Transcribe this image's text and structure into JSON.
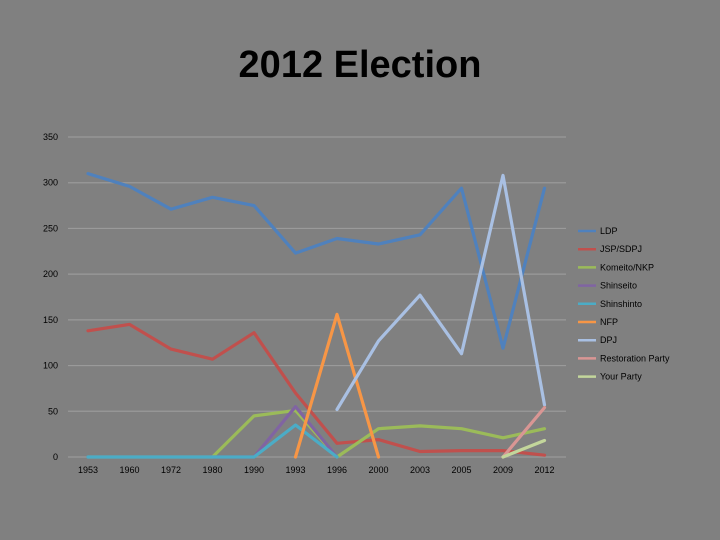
{
  "title": "2012 Election",
  "chart_data": {
    "type": "line",
    "title": "2012 Election",
    "xlabel": "",
    "ylabel": "",
    "ylim": [
      0,
      350
    ],
    "yticks": [
      0,
      50,
      100,
      150,
      200,
      250,
      300,
      350
    ],
    "grid": true,
    "legend_position": "right",
    "categories": [
      "1953",
      "1960",
      "1972",
      "1980",
      "1990",
      "1993",
      "1996",
      "2000",
      "2003",
      "2005",
      "2009",
      "2012"
    ],
    "series": [
      {
        "name": "LDP",
        "color": "#4f81bd",
        "values": [
          310,
          296,
          271,
          284,
          275,
          223,
          239,
          233,
          243,
          294,
          119,
          294
        ]
      },
      {
        "name": "JSP/SDPJ",
        "color": "#c0504d",
        "values": [
          138,
          145,
          118,
          107,
          136,
          70,
          15,
          19,
          6,
          7,
          7,
          2
        ]
      },
      {
        "name": "Komeito/NKP",
        "color": "#9bbb59",
        "values": [
          0,
          0,
          0,
          0,
          45,
          51,
          0,
          31,
          34,
          31,
          21,
          31
        ]
      },
      {
        "name": "Shinseito",
        "color": "#8064a2",
        "values": [
          0,
          0,
          0,
          0,
          0,
          55,
          0,
          null,
          null,
          null,
          null,
          null
        ]
      },
      {
        "name": "Shinshinto",
        "color": "#4bacc6",
        "values": [
          0,
          0,
          0,
          0,
          0,
          35,
          0,
          null,
          null,
          null,
          null,
          null
        ]
      },
      {
        "name": "NFP",
        "color": "#f79646",
        "values": [
          null,
          null,
          null,
          null,
          null,
          0,
          156,
          0,
          null,
          null,
          null,
          null
        ]
      },
      {
        "name": "DPJ",
        "color": "#a9c0e3",
        "values": [
          null,
          null,
          null,
          null,
          null,
          null,
          52,
          127,
          177,
          113,
          308,
          57
        ]
      },
      {
        "name": "Restoration Party",
        "color": "#d99694",
        "values": [
          null,
          null,
          null,
          null,
          null,
          null,
          null,
          null,
          null,
          null,
          0,
          54
        ]
      },
      {
        "name": "Your Party",
        "color": "#c3d69b",
        "values": [
          null,
          null,
          null,
          null,
          null,
          null,
          null,
          null,
          null,
          null,
          0,
          18
        ]
      }
    ]
  }
}
